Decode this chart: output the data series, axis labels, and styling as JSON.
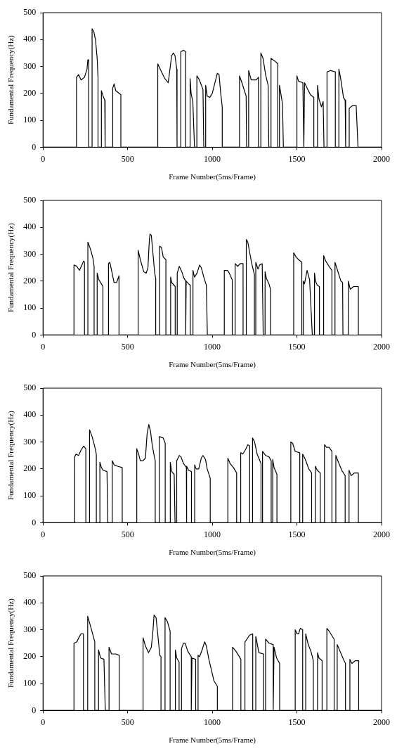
{
  "chart_data": [
    {
      "type": "line",
      "xlabel": "Frame Number(5ms/Frame)",
      "ylabel": "Fundamental Frequency(Hz)",
      "xlim": [
        0,
        2000
      ],
      "xticks": [
        0,
        500,
        1000,
        1500,
        2000
      ],
      "ylim": [
        0,
        500
      ],
      "yticks": [
        0,
        100,
        200,
        300,
        400,
        500
      ],
      "grid": false,
      "marker": "none",
      "line_style": "solid",
      "series": [
        {
          "color": "#000000",
          "x": [
            0,
            198,
            198,
            210,
            225,
            245,
            260,
            265,
            270,
            270,
            290,
            290,
            300,
            310,
            320,
            325,
            325,
            345,
            345,
            355,
            365,
            367,
            412,
            412,
            420,
            430,
            450,
            460,
            460,
            678,
            678,
            700,
            720,
            740,
            760,
            770,
            780,
            790,
            792,
            792,
            814,
            814,
            830,
            843,
            843,
            869,
            869,
            875,
            885,
            895,
            909,
            909,
            920,
            930,
            945,
            950,
            961,
            961,
            970,
            985,
            1000,
            1020,
            1030,
            1040,
            1050,
            1059,
            1059,
            1161,
            1161,
            1175,
            1190,
            1200,
            1203,
            1215,
            1215,
            1230,
            1260,
            1273,
            1273,
            1287,
            1287,
            1300,
            1315,
            1330,
            1334,
            1347,
            1347,
            1370,
            1387,
            1387,
            1397,
            1397,
            1405,
            1415,
            1420,
            1500,
            1500,
            1510,
            1535,
            1541,
            1545,
            1560,
            1580,
            1600,
            1600,
            1622,
            1622,
            1630,
            1645,
            1655,
            1660,
            1678,
            1678,
            1700,
            1727,
            1727,
            1748,
            1748,
            1760,
            1775,
            1785,
            1788,
            1809,
            1809,
            1830,
            1850,
            1861,
            2000
          ],
          "values": [
            0,
            0,
            260,
            270,
            250,
            260,
            290,
            325,
            325,
            0,
            0,
            440,
            430,
            400,
            330,
            260,
            0,
            0,
            210,
            190,
            175,
            0,
            0,
            220,
            235,
            210,
            200,
            195,
            0,
            0,
            310,
            280,
            255,
            240,
            340,
            350,
            340,
            290,
            290,
            0,
            0,
            355,
            360,
            355,
            0,
            0,
            255,
            200,
            170,
            0,
            0,
            265,
            255,
            240,
            215,
            0,
            0,
            230,
            190,
            185,
            200,
            250,
            275,
            270,
            200,
            150,
            0,
            0,
            265,
            240,
            210,
            190,
            0,
            0,
            285,
            250,
            250,
            260,
            0,
            0,
            350,
            330,
            270,
            230,
            0,
            0,
            330,
            320,
            310,
            0,
            0,
            230,
            200,
            160,
            0,
            0,
            265,
            245,
            240,
            0,
            240,
            220,
            195,
            185,
            0,
            0,
            230,
            180,
            150,
            170,
            0,
            0,
            280,
            285,
            280,
            0,
            0,
            290,
            250,
            185,
            175,
            0,
            0,
            145,
            155,
            155,
            0,
            0
          ]
        }
      ]
    },
    {
      "type": "line",
      "xlabel": "Frame Number(5ms/Frame)",
      "ylabel": "Fundamental Frequency(Hz)",
      "xlim": [
        0,
        2000
      ],
      "xticks": [
        0,
        500,
        1000,
        1500,
        2000
      ],
      "ylim": [
        0,
        500
      ],
      "yticks": [
        0,
        100,
        200,
        300,
        400,
        500
      ],
      "grid": false,
      "marker": "none",
      "line_style": "solid",
      "series": [
        {
          "color": "#000000",
          "x": [
            0,
            183,
            183,
            200,
            215,
            230,
            240,
            245,
            245,
            265,
            265,
            280,
            295,
            302,
            302,
            320,
            320,
            330,
            345,
            354,
            354,
            387,
            387,
            395,
            405,
            420,
            435,
            449,
            449,
            562,
            562,
            575,
            595,
            610,
            620,
            628,
            632,
            640,
            650,
            660,
            666,
            666,
            689,
            689,
            700,
            710,
            726,
            726,
            754,
            754,
            760,
            781,
            781,
            793,
            793,
            805,
            820,
            830,
            843,
            843,
            846,
            860,
            870,
            870,
            886,
            886,
            895,
            910,
            925,
            935,
            950,
            965,
            971,
            1071,
            1071,
            1090,
            1100,
            1118,
            1118,
            1135,
            1135,
            1150,
            1165,
            1182,
            1182,
            1201,
            1201,
            1210,
            1220,
            1235,
            1249,
            1249,
            1257,
            1257,
            1270,
            1280,
            1295,
            1301,
            1312,
            1312,
            1320,
            1335,
            1344,
            1344,
            1481,
            1481,
            1495,
            1510,
            1529,
            1529,
            1538,
            1538,
            1545,
            1560,
            1575,
            1591,
            1604,
            1604,
            1610,
            1620,
            1633,
            1633,
            1658,
            1658,
            1670,
            1690,
            1707,
            1707,
            1725,
            1725,
            1740,
            1760,
            1770,
            1772,
            1804,
            1804,
            1815,
            1835,
            1863,
            1863,
            2000
          ],
          "values": [
            0,
            0,
            260,
            255,
            240,
            260,
            275,
            270,
            0,
            0,
            345,
            320,
            285,
            255,
            0,
            0,
            230,
            205,
            190,
            180,
            0,
            0,
            265,
            270,
            240,
            195,
            195,
            220,
            0,
            0,
            315,
            280,
            235,
            230,
            250,
            350,
            375,
            370,
            300,
            230,
            210,
            0,
            0,
            330,
            325,
            290,
            280,
            0,
            0,
            215,
            195,
            180,
            0,
            0,
            230,
            255,
            235,
            215,
            200,
            0,
            200,
            190,
            185,
            0,
            0,
            240,
            215,
            230,
            260,
            250,
            215,
            185,
            0,
            0,
            240,
            240,
            230,
            205,
            0,
            0,
            265,
            255,
            265,
            265,
            0,
            0,
            355,
            345,
            310,
            260,
            225,
            0,
            0,
            270,
            245,
            260,
            265,
            0,
            0,
            235,
            210,
            190,
            170,
            0,
            0,
            305,
            290,
            280,
            270,
            0,
            0,
            200,
            190,
            240,
            205,
            0,
            0,
            230,
            200,
            185,
            180,
            0,
            0,
            295,
            275,
            255,
            240,
            0,
            0,
            270,
            240,
            200,
            195,
            0,
            0,
            200,
            170,
            180,
            180,
            0,
            0
          ]
        }
      ]
    },
    {
      "type": "line",
      "xlabel": "Frame Number(5ms/Frame)",
      "ylabel": "Fundamental Frequency(Hz)",
      "xlim": [
        0,
        2000
      ],
      "xticks": [
        0,
        500,
        1000,
        1500,
        2000
      ],
      "ylim": [
        0,
        500
      ],
      "yticks": [
        0,
        100,
        200,
        300,
        400,
        500
      ],
      "grid": false,
      "marker": "none",
      "line_style": "solid",
      "series": [
        {
          "color": "#000000",
          "x": [
            0,
            187,
            187,
            195,
            210,
            225,
            240,
            253,
            253,
            275,
            275,
            290,
            305,
            315,
            315,
            336,
            336,
            345,
            355,
            378,
            383,
            409,
            409,
            420,
            440,
            468,
            468,
            554,
            554,
            565,
            575,
            590,
            605,
            615,
            625,
            635,
            645,
            655,
            663,
            663,
            687,
            687,
            710,
            722,
            722,
            752,
            752,
            760,
            775,
            780,
            790,
            790,
            805,
            815,
            830,
            847,
            847,
            850,
            860,
            877,
            877,
            896,
            896,
            905,
            920,
            935,
            945,
            960,
            970,
            988,
            988,
            1092,
            1092,
            1105,
            1125,
            1144,
            1144,
            1168,
            1168,
            1180,
            1195,
            1210,
            1221,
            1221,
            1238,
            1238,
            1250,
            1265,
            1288,
            1288,
            1297,
            1297,
            1315,
            1335,
            1348,
            1348,
            1357,
            1357,
            1365,
            1382,
            1382,
            1464,
            1464,
            1475,
            1490,
            1517,
            1517,
            1534,
            1534,
            1550,
            1570,
            1587,
            1587,
            1609,
            1609,
            1620,
            1638,
            1638,
            1663,
            1663,
            1675,
            1690,
            1707,
            1707,
            1730,
            1730,
            1745,
            1765,
            1785,
            1785,
            1808,
            1808,
            1820,
            1840,
            1863,
            1863,
            2000
          ],
          "values": [
            0,
            0,
            245,
            255,
            250,
            270,
            285,
            275,
            0,
            0,
            345,
            320,
            285,
            255,
            0,
            0,
            225,
            205,
            195,
            190,
            0,
            0,
            230,
            215,
            210,
            205,
            0,
            0,
            275,
            255,
            230,
            230,
            240,
            330,
            365,
            340,
            290,
            255,
            230,
            0,
            0,
            320,
            315,
            295,
            0,
            0,
            225,
            190,
            180,
            0,
            0,
            230,
            250,
            245,
            220,
            205,
            0,
            210,
            195,
            190,
            0,
            0,
            215,
            200,
            200,
            240,
            250,
            235,
            200,
            165,
            0,
            0,
            240,
            220,
            205,
            185,
            0,
            0,
            260,
            255,
            270,
            290,
            285,
            0,
            0,
            315,
            300,
            255,
            220,
            0,
            0,
            265,
            250,
            245,
            230,
            0,
            0,
            235,
            205,
            180,
            0,
            0,
            300,
            295,
            265,
            260,
            0,
            0,
            255,
            235,
            200,
            185,
            0,
            0,
            210,
            195,
            185,
            0,
            0,
            290,
            280,
            280,
            265,
            0,
            0,
            250,
            225,
            195,
            175,
            0,
            0,
            195,
            175,
            185,
            185,
            0,
            0
          ]
        }
      ]
    },
    {
      "type": "line",
      "xlabel": "Frame Number(5ms/Frame)",
      "ylabel": "Fundamental Frequency(Hz)",
      "xlim": [
        0,
        2000
      ],
      "xticks": [
        0,
        500,
        1000,
        1500,
        2000
      ],
      "ylim": [
        0,
        500
      ],
      "yticks": [
        0,
        100,
        200,
        300,
        400,
        500
      ],
      "grid": false,
      "marker": "none",
      "line_style": "solid",
      "series": [
        {
          "color": "#000000",
          "x": [
            0,
            183,
            183,
            200,
            215,
            225,
            239,
            239,
            264,
            264,
            280,
            295,
            306,
            306,
            328,
            328,
            340,
            360,
            368,
            390,
            390,
            405,
            430,
            450,
            450,
            591,
            591,
            605,
            623,
            640,
            650,
            656,
            668,
            680,
            690,
            697,
            697,
            721,
            721,
            735,
            751,
            751,
            782,
            782,
            790,
            804,
            804,
            818,
            818,
            830,
            840,
            855,
            876,
            876,
            880,
            902,
            902,
            916,
            916,
            925,
            940,
            955,
            965,
            980,
            995,
            1010,
            1030,
            1030,
            1120,
            1120,
            1140,
            1160,
            1169,
            1169,
            1193,
            1193,
            1205,
            1220,
            1239,
            1239,
            1257,
            1257,
            1265,
            1275,
            1303,
            1303,
            1315,
            1315,
            1335,
            1360,
            1360,
            1365,
            1380,
            1398,
            1398,
            1490,
            1490,
            1500,
            1510,
            1520,
            1534,
            1534,
            1552,
            1552,
            1565,
            1585,
            1597,
            1597,
            1622,
            1622,
            1630,
            1649,
            1649,
            1677,
            1677,
            1690,
            1705,
            1720,
            1720,
            1738,
            1738,
            1755,
            1775,
            1787,
            1787,
            1813,
            1813,
            1825,
            1845,
            1865,
            1865,
            2000
          ],
          "values": [
            0,
            0,
            250,
            255,
            275,
            285,
            285,
            0,
            0,
            350,
            315,
            280,
            255,
            0,
            0,
            225,
            195,
            190,
            0,
            0,
            235,
            210,
            210,
            205,
            0,
            0,
            270,
            240,
            215,
            235,
            300,
            355,
            345,
            270,
            205,
            200,
            0,
            0,
            345,
            330,
            295,
            0,
            0,
            225,
            195,
            180,
            0,
            0,
            230,
            250,
            250,
            220,
            200,
            0,
            195,
            190,
            0,
            0,
            205,
            200,
            225,
            255,
            240,
            190,
            150,
            110,
            90,
            0,
            0,
            235,
            220,
            200,
            190,
            0,
            0,
            255,
            265,
            280,
            285,
            0,
            0,
            275,
            250,
            215,
            210,
            0,
            0,
            265,
            250,
            245,
            0,
            235,
            195,
            175,
            0,
            0,
            300,
            285,
            285,
            305,
            300,
            0,
            0,
            285,
            250,
            215,
            185,
            0,
            0,
            215,
            195,
            185,
            0,
            0,
            305,
            295,
            280,
            265,
            0,
            0,
            245,
            220,
            190,
            175,
            0,
            0,
            190,
            175,
            185,
            185,
            0,
            0
          ]
        }
      ]
    }
  ]
}
